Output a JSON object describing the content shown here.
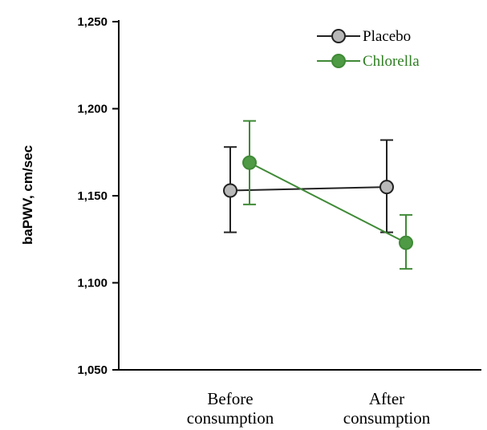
{
  "chart_data": {
    "type": "line",
    "ylabel": "baPWV, cm/sec",
    "xlabel": "",
    "ylim": [
      1050,
      1250
    ],
    "yticks": [
      1050,
      1100,
      1150,
      1200,
      1250
    ],
    "ytick_labels": [
      "1,050",
      "1,100",
      "1,150",
      "1,200",
      "1,250"
    ],
    "categories": [
      {
        "line1": "Before",
        "line2": "consumption"
      },
      {
        "line1": "After",
        "line2": "consumption"
      }
    ],
    "legend_position": "top-right",
    "series": [
      {
        "name": "Placebo",
        "color": "#222222",
        "marker_fill": "#b8b8b8",
        "text_color": "#000000",
        "values": [
          1153,
          1155
        ],
        "err_low": [
          1129,
          1129
        ],
        "err_high": [
          1178,
          1182
        ]
      },
      {
        "name": "Chlorella",
        "color": "#3f8a36",
        "marker_fill": "#4f9a45",
        "text_color": "#2e7d22",
        "values": [
          1169,
          1123
        ],
        "err_low": [
          1145,
          1108
        ],
        "err_high": [
          1193,
          1139
        ]
      }
    ]
  }
}
